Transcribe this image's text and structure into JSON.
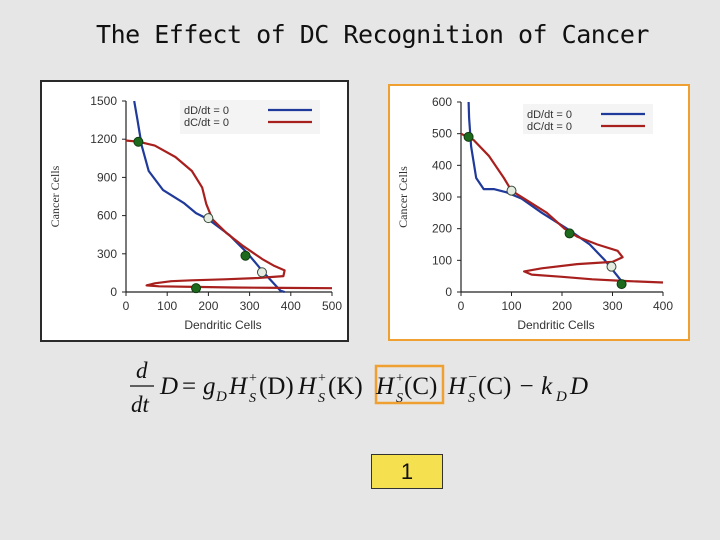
{
  "slide": {
    "title": "The Effect of DC Recognition of Cancer",
    "badge": "1"
  },
  "colors": {
    "nullcline_d": "#1f3a9a",
    "nullcline_c": "#a8201e",
    "stable": "#1d6a1d",
    "unstable": "#e4ece2",
    "highlight": "#f0a030"
  },
  "equation": {
    "lhs_num": "d",
    "lhs_den": "dt",
    "lhs_var": "D",
    "eq": "=",
    "g": "g",
    "g_sub": "D",
    "H": "H",
    "S": "S",
    "plus": "+",
    "minus": "−",
    "arg1": "(D)",
    "arg2": "(K)",
    "arg3": "(C)",
    "arg4": "(C)",
    "decay": "− k",
    "decay_sub": "D",
    "tail": "D"
  },
  "chart_data": [
    {
      "type": "line",
      "xlabel": "Dendritic Cells",
      "ylabel": "Cancer Cells",
      "xlim": [
        0,
        500
      ],
      "ylim": [
        0,
        1500
      ],
      "xticks": [
        0,
        100,
        200,
        300,
        400,
        500
      ],
      "yticks": [
        0,
        300,
        600,
        900,
        1200,
        1500
      ],
      "legend": [
        "dD/dt = 0",
        "dC/dt = 0"
      ],
      "legend_position": "top-right",
      "series": [
        {
          "name": "dD/dt = 0",
          "points": [
            [
              20,
              1500
            ],
            [
              28,
              1350
            ],
            [
              38,
              1150
            ],
            [
              55,
              950
            ],
            [
              90,
              800
            ],
            [
              140,
              700
            ],
            [
              170,
              620
            ],
            [
              200,
              570
            ],
            [
              250,
              450
            ],
            [
              295,
              305
            ],
            [
              335,
              150
            ],
            [
              375,
              10
            ],
            [
              385,
              0
            ]
          ]
        },
        {
          "name": "dC/dt = 0",
          "points": [
            [
              0,
              1190
            ],
            [
              30,
              1180
            ],
            [
              70,
              1150
            ],
            [
              120,
              1060
            ],
            [
              160,
              950
            ],
            [
              185,
              820
            ],
            [
              195,
              690
            ],
            [
              210,
              570
            ],
            [
              245,
              460
            ],
            [
              285,
              360
            ],
            [
              330,
              260
            ],
            [
              360,
              205
            ],
            [
              385,
              170
            ],
            [
              382,
              125
            ],
            [
              320,
              110
            ],
            [
              240,
              100
            ],
            [
              160,
              92
            ],
            [
              110,
              85
            ],
            [
              70,
              68
            ],
            [
              50,
              52
            ],
            [
              80,
              45
            ],
            [
              165,
              40
            ],
            [
              260,
              35
            ],
            [
              380,
              32
            ],
            [
              500,
              30
            ]
          ]
        }
      ],
      "equilibria": [
        {
          "x": 30,
          "y": 1180,
          "stability": "stable"
        },
        {
          "x": 200,
          "y": 580,
          "stability": "unstable"
        },
        {
          "x": 290,
          "y": 285,
          "stability": "stable"
        },
        {
          "x": 330,
          "y": 155,
          "stability": "unstable"
        },
        {
          "x": 170,
          "y": 30,
          "stability": "stable"
        }
      ]
    },
    {
      "type": "line",
      "xlabel": "Dendritic Cells",
      "ylabel": "Cancer Cells",
      "xlim": [
        0,
        400
      ],
      "ylim": [
        0,
        600
      ],
      "xticks": [
        0,
        100,
        200,
        300,
        400
      ],
      "yticks": [
        0,
        100,
        200,
        300,
        400,
        500,
        600
      ],
      "legend": [
        "dD/dt = 0",
        "dC/dt = 0"
      ],
      "legend_position": "top-right",
      "series": [
        {
          "name": "dD/dt = 0",
          "points": [
            [
              15,
              600
            ],
            [
              16,
              550
            ],
            [
              20,
              460
            ],
            [
              30,
              360
            ],
            [
              45,
              325
            ],
            [
              65,
              325
            ],
            [
              90,
              315
            ],
            [
              120,
              295
            ],
            [
              160,
              250
            ],
            [
              215,
              195
            ],
            [
              255,
              150
            ],
            [
              285,
              100
            ],
            [
              300,
              70
            ],
            [
              315,
              40
            ],
            [
              320,
              20
            ]
          ]
        },
        {
          "name": "dC/dt = 0",
          "points": [
            [
              0,
              500
            ],
            [
              25,
              480
            ],
            [
              55,
              430
            ],
            [
              85,
              360
            ],
            [
              100,
              320
            ],
            [
              130,
              290
            ],
            [
              170,
              250
            ],
            [
              205,
              200
            ],
            [
              230,
              175
            ],
            [
              270,
              150
            ],
            [
              310,
              130
            ],
            [
              320,
              110
            ],
            [
              300,
              95
            ],
            [
              230,
              88
            ],
            [
              160,
              75
            ],
            [
              125,
              65
            ],
            [
              140,
              55
            ],
            [
              200,
              48
            ],
            [
              260,
              40
            ],
            [
              320,
              35
            ],
            [
              400,
              30
            ]
          ]
        }
      ],
      "equilibria": [
        {
          "x": 15,
          "y": 490,
          "stability": "stable"
        },
        {
          "x": 100,
          "y": 320,
          "stability": "unstable"
        },
        {
          "x": 215,
          "y": 185,
          "stability": "stable"
        },
        {
          "x": 298,
          "y": 80,
          "stability": "unstable"
        },
        {
          "x": 318,
          "y": 25,
          "stability": "stable"
        }
      ]
    }
  ]
}
